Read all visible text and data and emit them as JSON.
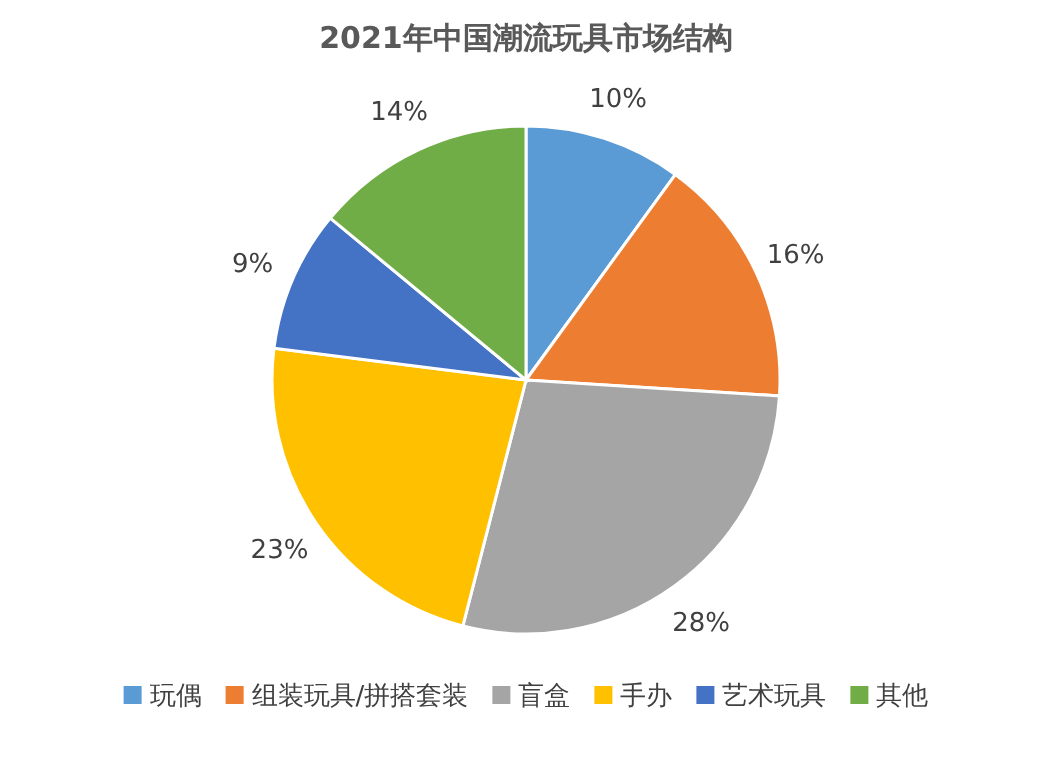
{
  "chart_data": {
    "type": "pie",
    "title": "2021年中国潮流玩具市场结构",
    "categories": [
      "玩偶",
      "组装玩具/拼搭套装",
      "盲盒",
      "手办",
      "艺术玩具",
      "其他"
    ],
    "values": [
      10,
      16,
      28,
      23,
      9,
      14
    ],
    "colors": [
      "#5b9bd5",
      "#ed7d31",
      "#a5a5a5",
      "#ffc000",
      "#4472c4",
      "#70ad47"
    ],
    "value_labels": [
      "10%",
      "16%",
      "28%",
      "23%",
      "9%",
      "14%"
    ],
    "legend": "bottom"
  }
}
